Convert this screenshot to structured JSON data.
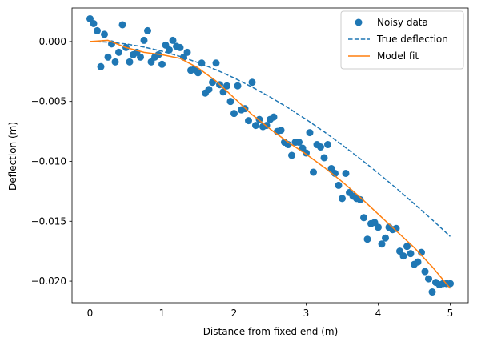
{
  "chart_data": {
    "type": "scatter",
    "xlabel": "Distance from fixed end (m)",
    "ylabel": "Deflection (m)",
    "xlim": [
      -0.25,
      5.25
    ],
    "ylim": [
      -0.0218,
      0.0028
    ],
    "xticks": [
      0,
      1,
      2,
      3,
      4,
      5
    ],
    "xtick_labels": [
      "0",
      "1",
      "2",
      "3",
      "4",
      "5"
    ],
    "yticks": [
      0.0,
      -0.005,
      -0.01,
      -0.015,
      -0.02
    ],
    "ytick_labels": [
      "0.000",
      "−0.005",
      "−0.010",
      "−0.015",
      "−0.020"
    ],
    "grid": false,
    "legend_position": "top-right",
    "colors": {
      "points": "#1f77b4",
      "true": "#1f77b4",
      "fit": "#ff7f0e"
    },
    "series": [
      {
        "name": "Noisy data",
        "kind": "scatter",
        "x": [
          0.0,
          0.05,
          0.1,
          0.15,
          0.2,
          0.25,
          0.3,
          0.35,
          0.4,
          0.45,
          0.5,
          0.55,
          0.6,
          0.65,
          0.7,
          0.75,
          0.8,
          0.85,
          0.9,
          0.95,
          1.0,
          1.05,
          1.1,
          1.15,
          1.2,
          1.25,
          1.3,
          1.35,
          1.4,
          1.45,
          1.5,
          1.55,
          1.6,
          1.65,
          1.7,
          1.75,
          1.8,
          1.85,
          1.9,
          1.95,
          2.0,
          2.05,
          2.1,
          2.15,
          2.2,
          2.25,
          2.3,
          2.35,
          2.4,
          2.45,
          2.5,
          2.55,
          2.6,
          2.65,
          2.7,
          2.75,
          2.8,
          2.85,
          2.9,
          2.95,
          3.0,
          3.05,
          3.1,
          3.15,
          3.2,
          3.25,
          3.3,
          3.35,
          3.4,
          3.45,
          3.5,
          3.55,
          3.6,
          3.65,
          3.7,
          3.75,
          3.8,
          3.85,
          3.9,
          3.95,
          4.0,
          4.05,
          4.1,
          4.15,
          4.2,
          4.25,
          4.3,
          4.35,
          4.4,
          4.45,
          4.5,
          4.55,
          4.6,
          4.65,
          4.7,
          4.75,
          4.8,
          4.85,
          4.9,
          4.95,
          5.0
        ],
        "y": [
          0.0019,
          0.0015,
          0.0009,
          -0.0021,
          0.0006,
          -0.0013,
          -0.0002,
          -0.0017,
          -0.0009,
          0.0014,
          -0.0005,
          -0.0017,
          -0.0011,
          -0.0009,
          -0.0013,
          0.0001,
          0.0009,
          -0.0017,
          -0.0013,
          -0.0011,
          -0.0019,
          -0.0003,
          -0.0007,
          0.0001,
          -0.0004,
          -0.0005,
          -0.0013,
          -0.0009,
          -0.0024,
          -0.0023,
          -0.0026,
          -0.0018,
          -0.0043,
          -0.004,
          -0.0034,
          -0.0018,
          -0.0036,
          -0.0042,
          -0.0037,
          -0.005,
          -0.006,
          -0.0037,
          -0.0057,
          -0.0056,
          -0.0066,
          -0.0034,
          -0.007,
          -0.0065,
          -0.0071,
          -0.007,
          -0.0065,
          -0.0063,
          -0.0075,
          -0.0074,
          -0.0084,
          -0.0086,
          -0.0095,
          -0.0084,
          -0.0084,
          -0.0089,
          -0.0093,
          -0.0076,
          -0.0109,
          -0.0086,
          -0.0088,
          -0.0097,
          -0.0086,
          -0.0106,
          -0.011,
          -0.012,
          -0.0131,
          -0.011,
          -0.0126,
          -0.0129,
          -0.0131,
          -0.0132,
          -0.0147,
          -0.0165,
          -0.0152,
          -0.0151,
          -0.0155,
          -0.0169,
          -0.0164,
          -0.0155,
          -0.0157,
          -0.0156,
          -0.0175,
          -0.0179,
          -0.0171,
          -0.0177,
          -0.0186,
          -0.0184,
          -0.0176,
          -0.0192,
          -0.0198,
          -0.0209,
          -0.0201,
          -0.0203,
          -0.0202,
          -0.0202,
          -0.0202
        ]
      },
      {
        "name": "True deflection",
        "kind": "line-dashed",
        "x": [
          0,
          0.25,
          0.5,
          0.75,
          1.0,
          1.25,
          1.5,
          1.75,
          2.0,
          2.25,
          2.5,
          2.75,
          3.0,
          3.25,
          3.5,
          3.75,
          4.0,
          4.25,
          4.5,
          4.75,
          5.0
        ],
        "y": [
          0.0,
          -5e-05,
          -0.0002,
          -0.00046,
          -0.00081,
          -0.00124,
          -0.00176,
          -0.00236,
          -0.00304,
          -0.0038,
          -0.00463,
          -0.00553,
          -0.0065,
          -0.00753,
          -0.00863,
          -0.00978,
          -0.01098,
          -0.01224,
          -0.01354,
          -0.01488,
          -0.01627
        ]
      },
      {
        "name": "Model fit",
        "kind": "line",
        "x": [
          0,
          0.25,
          0.5,
          0.75,
          1.0,
          1.25,
          1.5,
          1.75,
          2.0,
          2.25,
          2.5,
          2.75,
          3.0,
          3.25,
          3.5,
          3.75,
          4.0,
          4.25,
          4.5,
          4.75,
          5.0
        ],
        "y": [
          0.0,
          0.0001,
          -0.0005,
          -0.0009,
          -0.0011,
          -0.0014,
          -0.0022,
          -0.0033,
          -0.0047,
          -0.0061,
          -0.0073,
          -0.0084,
          -0.0094,
          -0.0105,
          -0.0117,
          -0.013,
          -0.0144,
          -0.0158,
          -0.0172,
          -0.0188,
          -0.0206
        ]
      }
    ]
  }
}
